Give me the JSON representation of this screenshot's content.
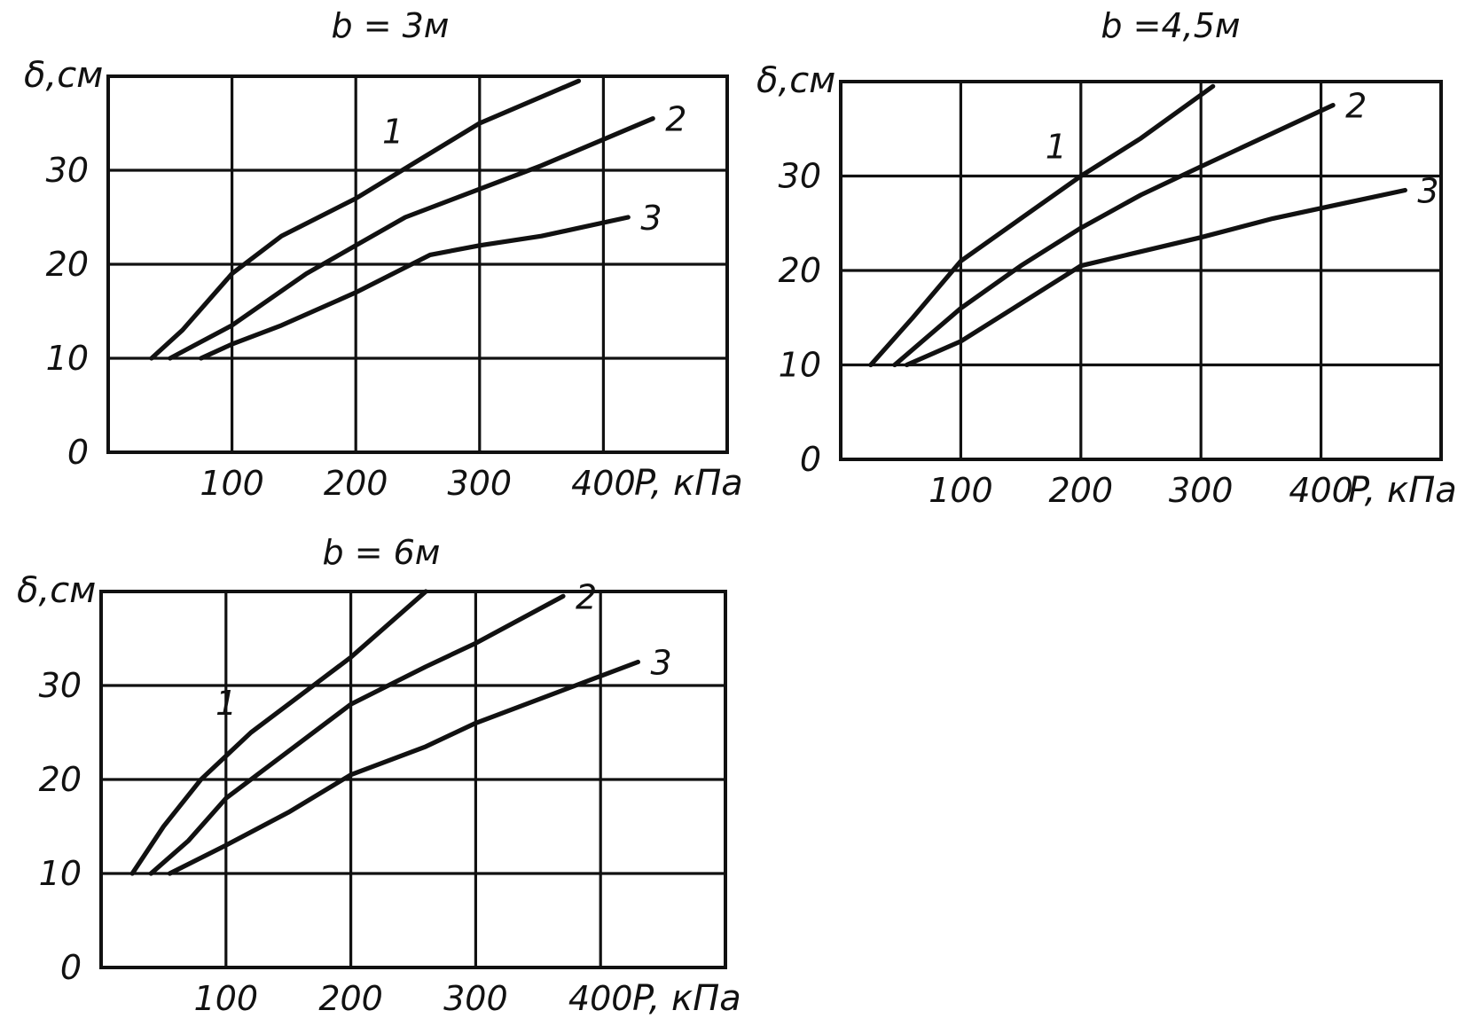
{
  "chart_data": [
    {
      "type": "line",
      "title": "b = 3м",
      "xlabel": "P, кПа",
      "ylabel": "δ,см",
      "xlim": [
        0,
        500
      ],
      "ylim": [
        0,
        40
      ],
      "x_ticks": [
        100,
        200,
        300,
        400
      ],
      "y_ticks": [
        0,
        10,
        20,
        30
      ],
      "grid": true,
      "series": [
        {
          "name": "1",
          "x": [
            35,
            60,
            100,
            140,
            200,
            250,
            300,
            380
          ],
          "y": [
            10,
            13,
            19,
            23,
            27,
            31,
            35,
            39.5
          ]
        },
        {
          "name": "2",
          "x": [
            50,
            100,
            160,
            200,
            240,
            300,
            350,
            440
          ],
          "y": [
            10,
            13.5,
            19,
            22,
            25,
            28,
            30.5,
            35.5
          ]
        },
        {
          "name": "3",
          "x": [
            75,
            100,
            140,
            200,
            260,
            300,
            350,
            420
          ],
          "y": [
            10,
            11.5,
            13.5,
            17,
            21,
            22,
            23,
            25
          ]
        }
      ]
    },
    {
      "type": "line",
      "title": "b =4,5м",
      "xlabel": "P, кПа",
      "ylabel": "δ,см",
      "xlim": [
        0,
        500
      ],
      "ylim": [
        0,
        40
      ],
      "x_ticks": [
        100,
        200,
        300,
        400
      ],
      "y_ticks": [
        0,
        10,
        20,
        30
      ],
      "grid": true,
      "series": [
        {
          "name": "1",
          "x": [
            25,
            60,
            100,
            150,
            200,
            250,
            310
          ],
          "y": [
            10,
            15,
            21,
            25.5,
            30,
            34,
            39.5
          ]
        },
        {
          "name": "2",
          "x": [
            45,
            100,
            150,
            200,
            250,
            300,
            410
          ],
          "y": [
            10,
            16,
            20.5,
            24.5,
            28,
            31,
            37.5
          ]
        },
        {
          "name": "3",
          "x": [
            55,
            100,
            150,
            200,
            250,
            300,
            360,
            470
          ],
          "y": [
            10,
            12.5,
            16.5,
            20.5,
            22,
            23.5,
            25.5,
            28.5
          ]
        }
      ]
    },
    {
      "type": "line",
      "title": "b = 6м",
      "xlabel": "P, кПа",
      "ylabel": "δ,см",
      "xlim": [
        0,
        500
      ],
      "ylim": [
        0,
        40
      ],
      "x_ticks": [
        100,
        200,
        300,
        400
      ],
      "y_ticks": [
        0,
        10,
        20,
        30
      ],
      "grid": true,
      "series": [
        {
          "name": "1",
          "x": [
            25,
            50,
            80,
            120,
            200,
            260
          ],
          "y": [
            10,
            15,
            20,
            25,
            33,
            40
          ]
        },
        {
          "name": "2",
          "x": [
            40,
            70,
            100,
            140,
            200,
            260,
            300,
            370
          ],
          "y": [
            10,
            13.5,
            18,
            22,
            28,
            32,
            34.5,
            39.5
          ]
        },
        {
          "name": "3",
          "x": [
            55,
            100,
            150,
            200,
            260,
            300,
            380,
            430
          ],
          "y": [
            10,
            13,
            16.5,
            20.5,
            23.5,
            26,
            30,
            32.5
          ]
        }
      ]
    }
  ]
}
